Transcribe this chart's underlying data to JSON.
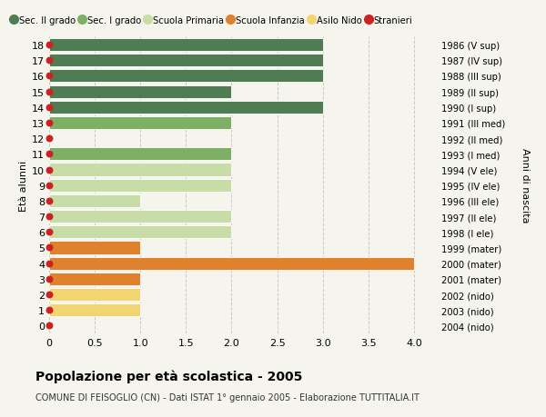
{
  "ages": [
    18,
    17,
    16,
    15,
    14,
    13,
    12,
    11,
    10,
    9,
    8,
    7,
    6,
    5,
    4,
    3,
    2,
    1,
    0
  ],
  "years": [
    "1986 (V sup)",
    "1987 (IV sup)",
    "1988 (III sup)",
    "1989 (II sup)",
    "1990 (I sup)",
    "1991 (III med)",
    "1992 (II med)",
    "1993 (I med)",
    "1994 (V ele)",
    "1995 (IV ele)",
    "1996 (III ele)",
    "1997 (II ele)",
    "1998 (I ele)",
    "1999 (mater)",
    "2000 (mater)",
    "2001 (mater)",
    "2002 (nido)",
    "2003 (nido)",
    "2004 (nido)"
  ],
  "bar_values": [
    3,
    3,
    3,
    2,
    3,
    2,
    0,
    2,
    2,
    2,
    1,
    2,
    2,
    1,
    4,
    1,
    1,
    1,
    0
  ],
  "bar_colors": [
    "#4f7c52",
    "#4f7c52",
    "#4f7c52",
    "#4f7c52",
    "#4f7c52",
    "#7db065",
    "#7db065",
    "#7db065",
    "#c8dca8",
    "#c8dca8",
    "#c8dca8",
    "#c8dca8",
    "#c8dca8",
    "#e0812e",
    "#e0812e",
    "#e0812e",
    "#f2d472",
    "#f2d472",
    "#f2d472"
  ],
  "legend_labels": [
    "Sec. II grado",
    "Sec. I grado",
    "Scuola Primaria",
    "Scuola Infanzia",
    "Asilo Nido",
    "Stranieri"
  ],
  "legend_colors": [
    "#4f7c52",
    "#7db065",
    "#c8dca8",
    "#e0812e",
    "#f2d472",
    "#cc2222"
  ],
  "ylabel_left": "Età alunni",
  "ylabel_right": "Anni di nascita",
  "title": "Popolazione per età scolastica - 2005",
  "subtitle": "COMUNE DI FEISOGLIO (CN) - Dati ISTAT 1° gennaio 2005 - Elaborazione TUTTITALIA.IT",
  "xlim": [
    0,
    4.25
  ],
  "xticks": [
    0,
    0.5,
    1.0,
    1.5,
    2.0,
    2.5,
    3.0,
    3.5,
    4.0
  ],
  "xtick_labels": [
    "0",
    "0.5",
    "1.0",
    "1.5",
    "2.0",
    "2.5",
    "3.0",
    "3.5",
    "4.0"
  ],
  "bg_color": "#f5f5ee",
  "bar_height": 0.82,
  "dot_color": "#cc2222",
  "dot_size": 22,
  "grid_color": "#c8c8c8",
  "grid_style": "--"
}
